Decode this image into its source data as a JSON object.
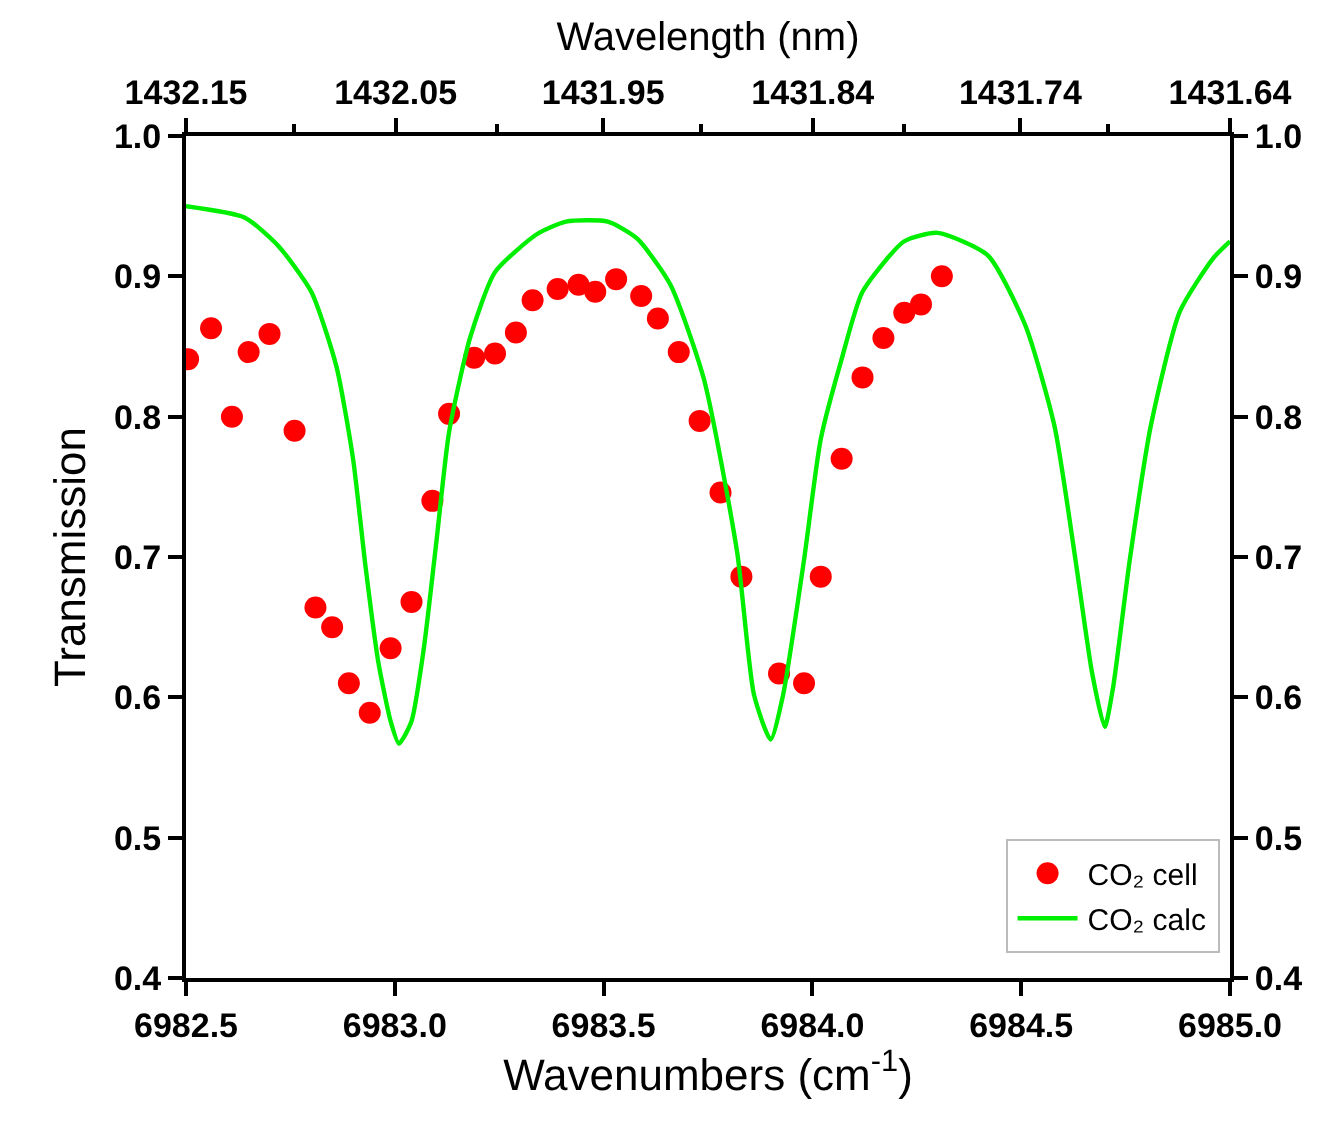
{
  "chart_data": {
    "type": "scatter",
    "xlabel": "Wavenumbers (cm$^{-1}$)",
    "ylabel": "Transmission",
    "x2label": "Wavelength (nm)",
    "xlim": [
      6982.5,
      6985.0
    ],
    "xticks": [
      6982.5,
      {
        "value": 6983,
        "label": "6983.0"
      },
      6983.5,
      {
        "value": 6984,
        "label": "6984.0"
      },
      6984.5,
      {
        "value": 6985,
        "label": "6985.0"
      }
    ],
    "x2lim": [
      1432.153,
      1431.64
    ],
    "x2ticks": [
      {
        "value": 1432.153,
        "label": "1432.15"
      },
      {
        "value": 1432.05,
        "label": "1432.05"
      },
      {
        "value": 1431.948,
        "label": "1431.95"
      },
      {
        "value": 1431.845,
        "label": "1431.84"
      },
      {
        "value": 1431.743,
        "label": "1431.74"
      },
      {
        "value": 1431.64,
        "label": "1431.64"
      }
    ],
    "ylim": [
      0.4,
      1.0
    ],
    "yticks": [
      0.4,
      0.5,
      0.6,
      0.7,
      0.8,
      0.9,
      {
        "value": 1,
        "label": "1.0"
      }
    ],
    "y2lim": [
      0.4,
      1.0
    ],
    "y2ticks": [
      0.4,
      0.5,
      0.6,
      0.7,
      0.8,
      0.9,
      {
        "value": 1,
        "label": "1.0"
      }
    ],
    "legend": "bottom right",
    "series": [
      {
        "name": "CO₂ cell",
        "marker": "circle",
        "color": "#ff0000",
        "x": [
          6982.505,
          6982.56,
          6982.61,
          6982.65,
          6982.7,
          6982.76,
          6982.81,
          6982.85,
          6982.89,
          6982.94,
          6982.99,
          6983.04,
          6983.09,
          6983.13,
          6983.19,
          6983.24,
          6983.29,
          6983.33,
          6983.39,
          6983.44,
          6983.48,
          6983.53,
          6983.59,
          6983.63,
          6983.68,
          6983.73,
          6983.78,
          6983.83,
          6983.92,
          6983.98,
          6984.02,
          6984.07,
          6984.12,
          6984.17,
          6984.22,
          6984.26,
          6984.31
        ],
        "values": [
          0.841,
          0.863,
          0.8,
          0.846,
          0.859,
          0.79,
          0.664,
          0.65,
          0.61,
          0.589,
          0.635,
          0.668,
          0.74,
          0.802,
          0.842,
          0.845,
          0.86,
          0.883,
          0.891,
          0.894,
          0.889,
          0.898,
          0.886,
          0.87,
          0.846,
          0.797,
          0.746,
          0.686,
          0.617,
          0.61,
          0.686,
          0.77,
          0.828,
          0.856,
          0.874,
          0.88,
          0.9
        ]
      },
      {
        "name": "CO₂ calc",
        "type": "line",
        "marker": "none",
        "line_style": "solid",
        "color": "#00ee00",
        "x": [
          6982.5,
          6982.64,
          6982.72,
          6982.8,
          6982.86,
          6982.9,
          6982.93,
          6982.96,
          6982.99,
          6983.01,
          6983.04,
          6983.07,
          6983.1,
          6983.13,
          6983.18,
          6983.24,
          6983.34,
          6983.41,
          6983.51,
          6983.58,
          6983.66,
          6983.74,
          6983.82,
          6983.86,
          6983.9,
          6983.93,
          6983.98,
          6984.02,
          6984.07,
          6984.12,
          6984.22,
          6984.3,
          6984.42,
          6984.51,
          6984.58,
          6984.63,
          6984.67,
          6984.7,
          6984.72,
          6984.76,
          6984.81,
          6984.88,
          6984.96,
          6985.0
        ],
        "values": [
          0.95,
          0.942,
          0.922,
          0.889,
          0.836,
          0.77,
          0.693,
          0.626,
          0.583,
          0.567,
          0.583,
          0.636,
          0.712,
          0.789,
          0.856,
          0.903,
          0.93,
          0.939,
          0.939,
          0.927,
          0.894,
          0.827,
          0.703,
          0.602,
          0.57,
          0.602,
          0.698,
          0.784,
          0.841,
          0.889,
          0.925,
          0.931,
          0.915,
          0.865,
          0.793,
          0.698,
          0.617,
          0.579,
          0.607,
          0.698,
          0.793,
          0.875,
          0.913,
          0.925
        ]
      }
    ]
  }
}
